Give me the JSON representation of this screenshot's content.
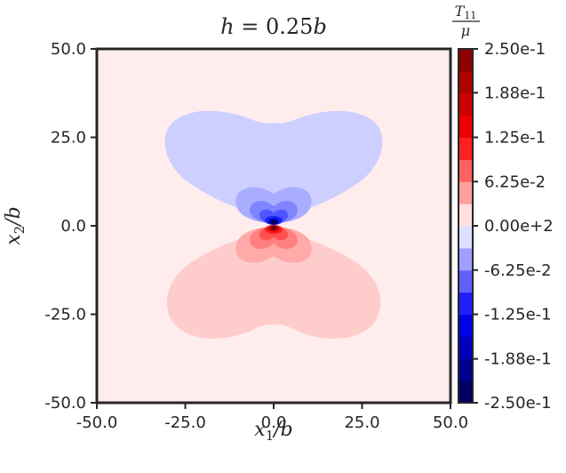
{
  "chart_data": {
    "type": "heatmap",
    "title": "h = 0.25b",
    "title_parts": {
      "lhs": "h",
      "eq": " = 0.25",
      "rhs": "b"
    },
    "xlabel": "x_1/b",
    "ylabel": "x_2/b",
    "axis_labels": {
      "x": {
        "sym": "x",
        "sub": "1",
        "rest": "/b"
      },
      "y": {
        "sym": "x",
        "sub": "2",
        "rest": "/b"
      }
    },
    "xlim": [
      -50,
      50
    ],
    "ylim": [
      -50,
      50
    ],
    "x_ticks": [
      "-50.0",
      "-25.0",
      "0.0",
      "25.0",
      "50.0"
    ],
    "y_ticks": [
      "-50.0",
      "-25.0",
      "0.0",
      "25.0",
      "50.0"
    ],
    "colorbar": {
      "label": "T_11 / μ",
      "label_parts": {
        "num": "T",
        "sub": "11",
        "den": "μ"
      },
      "min": -0.25,
      "max": 0.25,
      "levels": 16,
      "ticks": [
        "2.50e-1",
        "1.88e-1",
        "1.25e-1",
        "6.25e-2",
        "0.00e+2",
        "-6.25e-2",
        "-1.25e-1",
        "-1.88e-1",
        "-2.50e-1"
      ],
      "colormap": "seismic"
    },
    "field": {
      "background_level": "slightly positive (≈0.00 to 3.1e-2)",
      "upper_lobe": "negative, butterfly-shaped, -3.1e-2 band, spanning x≈-32..32, y≈2..32",
      "lower_lobe": "positive, butterfly-shaped, +3.1e-2 band, spanning x≈-31..31, y≈-32..-2",
      "core": "dipole singularity at origin: negative above, positive below, magnitude reaching ±2.5e-1"
    },
    "grid": false
  }
}
